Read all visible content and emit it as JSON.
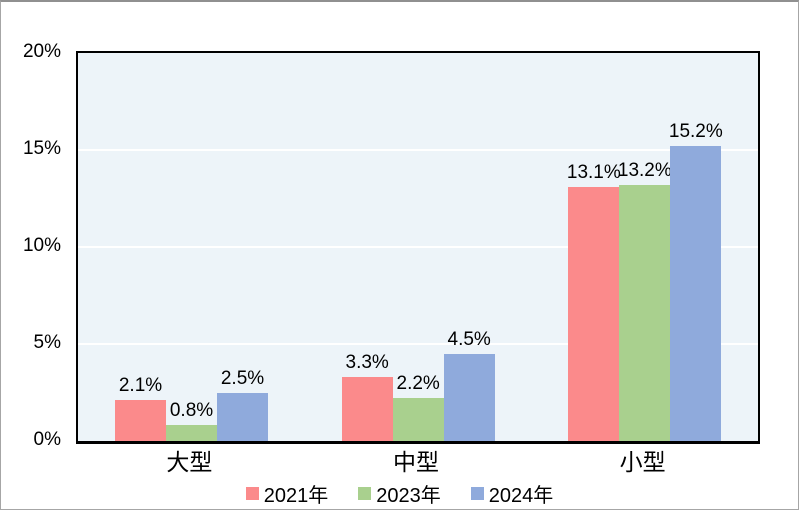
{
  "chart_data": {
    "type": "bar",
    "title": "",
    "categories": [
      "大型",
      "中型",
      "小型"
    ],
    "series": [
      {
        "name": "2021年",
        "color": "#fb8a8b",
        "values": [
          2.1,
          3.3,
          13.1
        ],
        "labels": [
          "2.1%",
          "3.3%",
          "13.1%"
        ]
      },
      {
        "name": "2023年",
        "color": "#a9d08e",
        "values": [
          0.8,
          2.2,
          13.2
        ],
        "labels": [
          "0.8%",
          "2.2%",
          "13.2%"
        ]
      },
      {
        "name": "2024年",
        "color": "#8faadc",
        "values": [
          2.5,
          4.5,
          15.2
        ],
        "labels": [
          "2.5%",
          "4.5%",
          "15.2%"
        ]
      }
    ],
    "y_axis": {
      "min": 0,
      "max": 20,
      "step": 5,
      "tick_labels": [
        "0%",
        "5%",
        "10%",
        "15%",
        "20%"
      ]
    },
    "xlabel": "",
    "ylabel": "",
    "legend": {
      "position": "bottom",
      "entries": [
        "2021年",
        "2023年",
        "2024年"
      ]
    },
    "grid": "horizontal-white",
    "colors": {
      "plot_background": "#edf4f9",
      "gridline": "#ffffff",
      "axis_border": "#000000",
      "frame_border": "#a6a6a6",
      "text": "#000000"
    }
  }
}
